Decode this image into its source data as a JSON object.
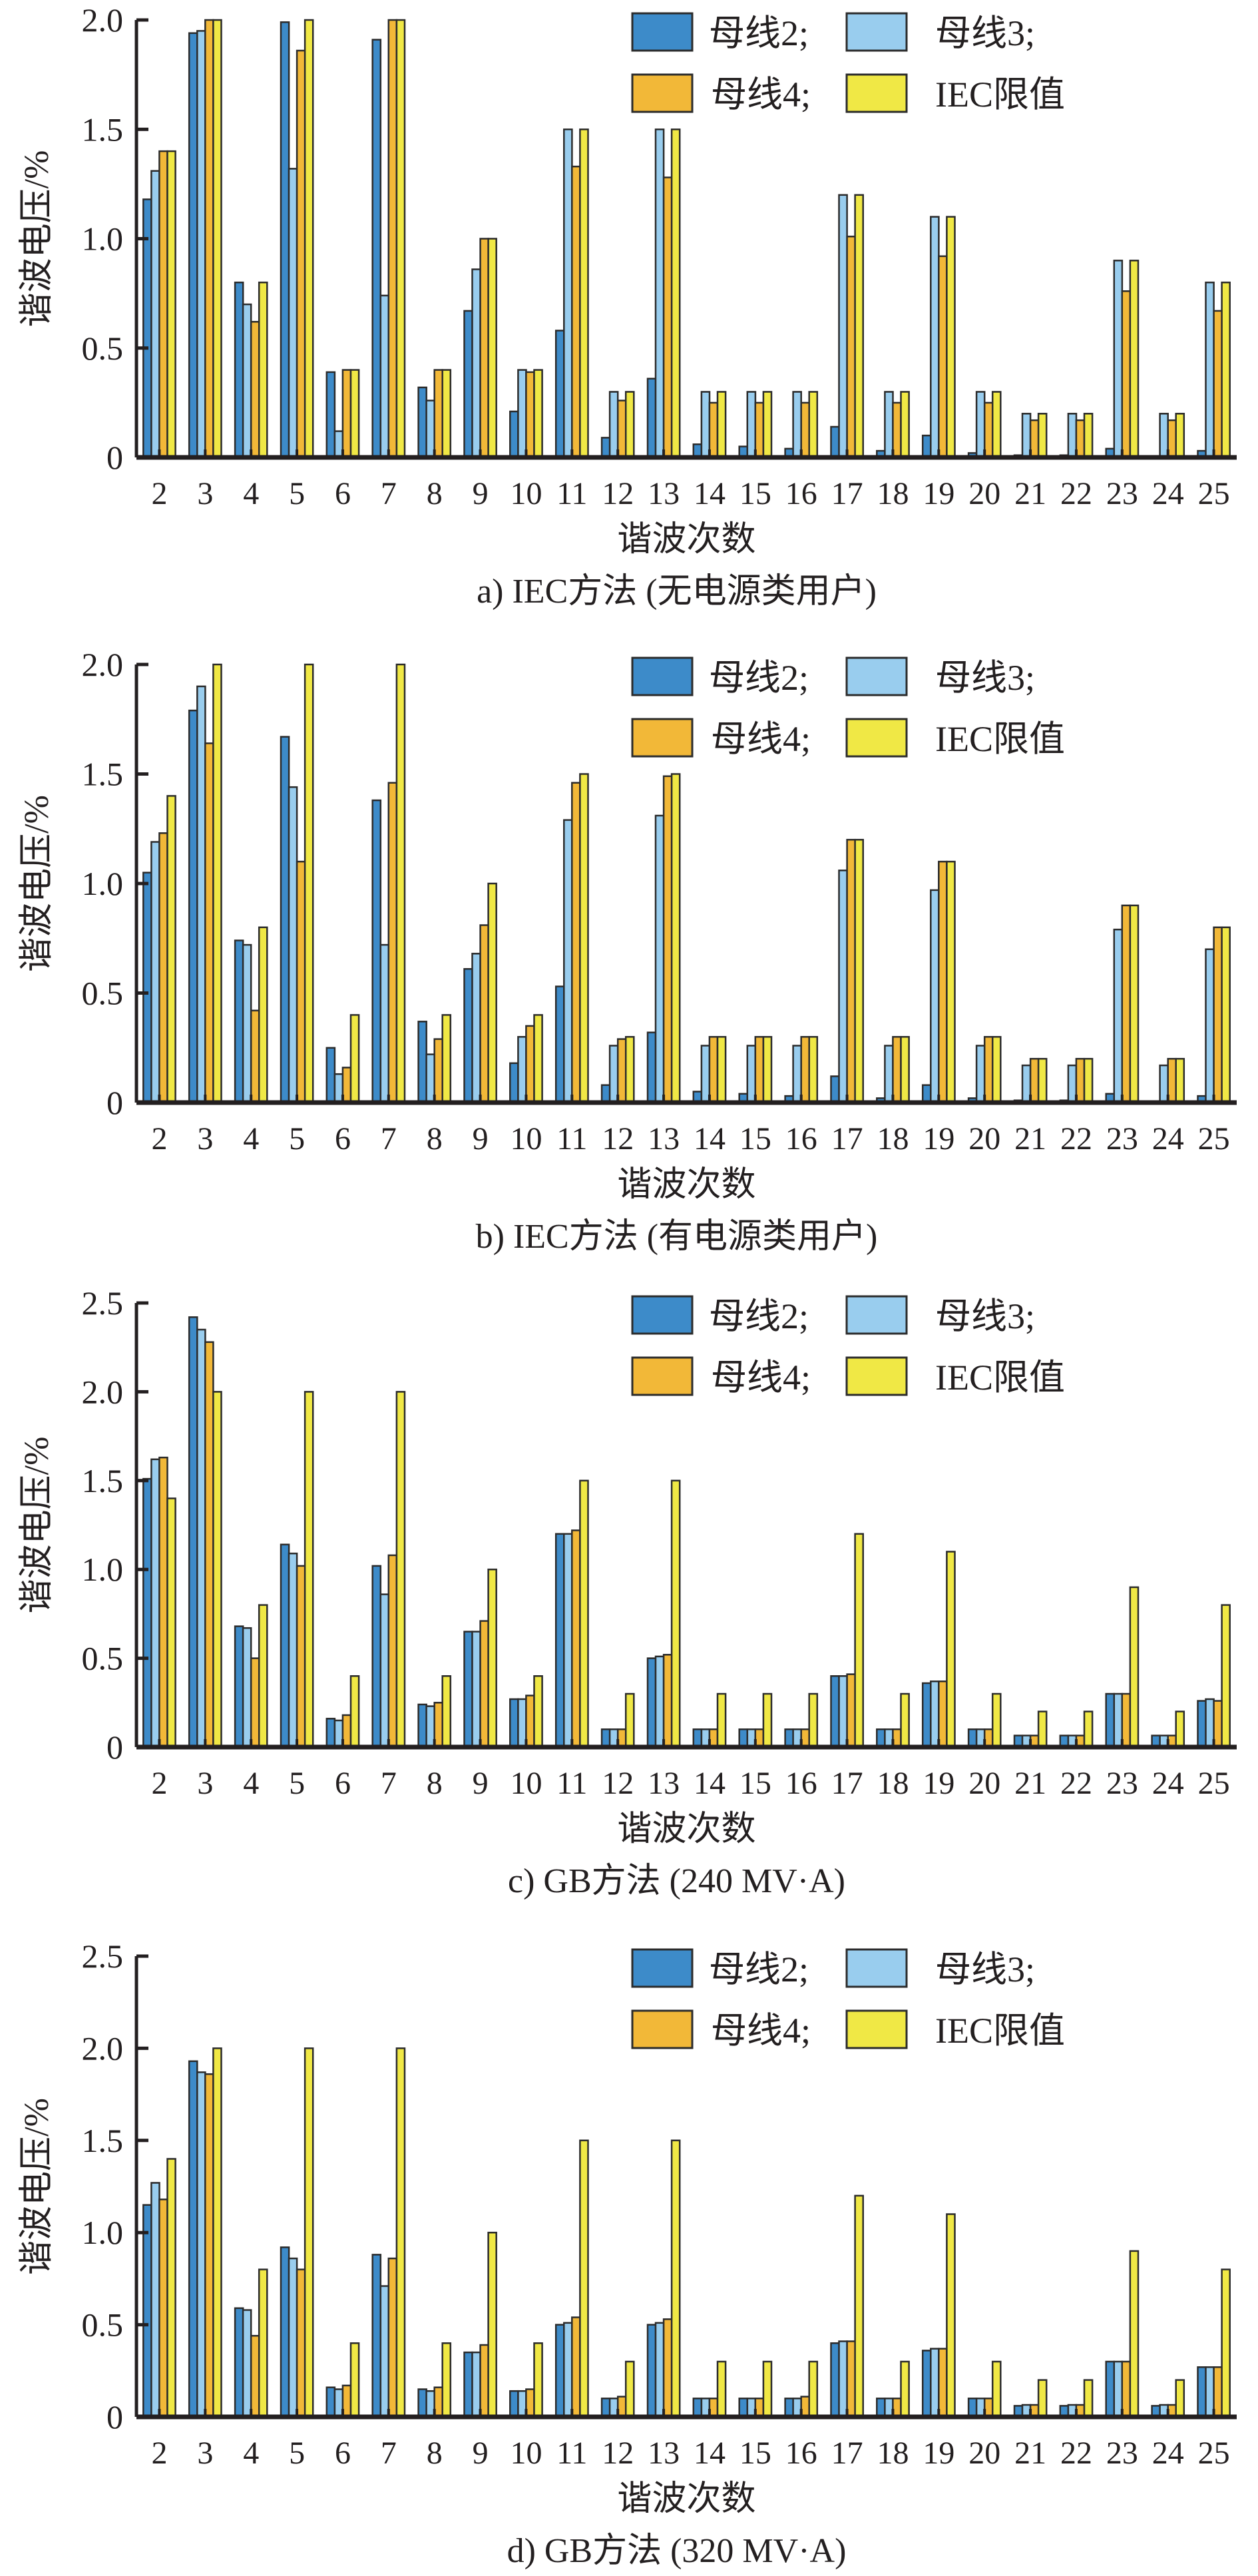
{
  "legend": {
    "items": [
      {
        "label": "母线2;",
        "color": "#3d8bc9"
      },
      {
        "label": "母线3;",
        "color": "#99cdee"
      },
      {
        "label": "母线4;",
        "color": "#f2b838"
      },
      {
        "label": "IEC限值",
        "color": "#f0e845"
      }
    ]
  },
  "chart_data": [
    {
      "type": "bar",
      "title": "a) IEC方法 (无电源类用户)",
      "xlabel": "谐波次数",
      "ylabel": "谐波电压/%",
      "ylim": [
        0,
        2.0
      ],
      "yticks": [
        0,
        0.5,
        1.0,
        1.5,
        2.0
      ],
      "ytick_labels": [
        "0",
        "0.5",
        "1.0",
        "1.5",
        "2.0"
      ],
      "legend_position": "top-right",
      "grid": false,
      "categories": [
        "2",
        "3",
        "4",
        "5",
        "6",
        "7",
        "8",
        "9",
        "10",
        "11",
        "12",
        "13",
        "14",
        "15",
        "16",
        "17",
        "18",
        "19",
        "20",
        "21",
        "22",
        "23",
        "24",
        "25"
      ],
      "series": [
        {
          "name": "母线2",
          "values": [
            1.18,
            1.94,
            0.8,
            1.99,
            0.39,
            1.91,
            0.32,
            0.67,
            0.21,
            0.58,
            0.09,
            0.36,
            0.06,
            0.05,
            0.04,
            0.14,
            0.03,
            0.1,
            0.02,
            0.01,
            0.01,
            0.04,
            0.005,
            0.03
          ]
        },
        {
          "name": "母线3",
          "values": [
            1.31,
            1.95,
            0.7,
            1.32,
            0.12,
            0.74,
            0.26,
            0.86,
            0.4,
            1.5,
            0.3,
            1.5,
            0.3,
            0.3,
            0.3,
            1.2,
            0.3,
            1.1,
            0.3,
            0.2,
            0.2,
            0.9,
            0.2,
            0.8
          ]
        },
        {
          "name": "母线4",
          "values": [
            1.4,
            2.0,
            0.62,
            1.86,
            0.4,
            2.0,
            0.4,
            1.0,
            0.39,
            1.33,
            0.26,
            1.28,
            0.25,
            0.25,
            0.25,
            1.01,
            0.25,
            0.92,
            0.25,
            0.17,
            0.17,
            0.76,
            0.17,
            0.67
          ]
        },
        {
          "name": "IEC限值",
          "values": [
            1.4,
            2.0,
            0.8,
            2.0,
            0.4,
            2.0,
            0.4,
            1.0,
            0.4,
            1.5,
            0.3,
            1.5,
            0.3,
            0.3,
            0.3,
            1.2,
            0.3,
            1.1,
            0.3,
            0.2,
            0.2,
            0.9,
            0.2,
            0.8
          ]
        }
      ]
    },
    {
      "type": "bar",
      "title": "b) IEC方法 (有电源类用户)",
      "xlabel": "谐波次数",
      "ylabel": "谐波电压/%",
      "ylim": [
        0,
        2.0
      ],
      "yticks": [
        0,
        0.5,
        1.0,
        1.5,
        2.0
      ],
      "ytick_labels": [
        "0",
        "0.5",
        "1.0",
        "1.5",
        "2.0"
      ],
      "legend_position": "top-right",
      "grid": false,
      "categories": [
        "2",
        "3",
        "4",
        "5",
        "6",
        "7",
        "8",
        "9",
        "10",
        "11",
        "12",
        "13",
        "14",
        "15",
        "16",
        "17",
        "18",
        "19",
        "20",
        "21",
        "22",
        "23",
        "24",
        "25"
      ],
      "series": [
        {
          "name": "母线2",
          "values": [
            1.05,
            1.79,
            0.74,
            1.67,
            0.25,
            1.38,
            0.37,
            0.61,
            0.18,
            0.53,
            0.08,
            0.32,
            0.05,
            0.04,
            0.03,
            0.12,
            0.02,
            0.08,
            0.02,
            0.01,
            0.01,
            0.04,
            0.005,
            0.03
          ]
        },
        {
          "name": "母线3",
          "values": [
            1.19,
            1.9,
            0.72,
            1.44,
            0.13,
            0.72,
            0.22,
            0.68,
            0.3,
            1.29,
            0.26,
            1.31,
            0.26,
            0.26,
            0.26,
            1.06,
            0.26,
            0.97,
            0.26,
            0.17,
            0.17,
            0.79,
            0.17,
            0.7
          ]
        },
        {
          "name": "母线4",
          "values": [
            1.23,
            1.64,
            0.42,
            1.1,
            0.16,
            1.46,
            0.29,
            0.81,
            0.35,
            1.46,
            0.29,
            1.49,
            0.3,
            0.3,
            0.3,
            1.2,
            0.3,
            1.1,
            0.3,
            0.2,
            0.2,
            0.9,
            0.2,
            0.8
          ]
        },
        {
          "name": "IEC限值",
          "values": [
            1.4,
            2.0,
            0.8,
            2.0,
            0.4,
            2.0,
            0.4,
            1.0,
            0.4,
            1.5,
            0.3,
            1.5,
            0.3,
            0.3,
            0.3,
            1.2,
            0.3,
            1.1,
            0.3,
            0.2,
            0.2,
            0.9,
            0.2,
            0.8
          ]
        }
      ]
    },
    {
      "type": "bar",
      "title": "c) GB方法 (240 MV·A)",
      "xlabel": "谐波次数",
      "ylabel": "谐波电压/%",
      "ylim": [
        0,
        2.5
      ],
      "yticks": [
        0,
        0.5,
        1.0,
        1.5,
        2.0,
        2.5
      ],
      "ytick_labels": [
        "0",
        "0.5",
        "1.0",
        "1.5",
        "2.0",
        "2.5"
      ],
      "legend_position": "top-right",
      "grid": false,
      "categories": [
        "2",
        "3",
        "4",
        "5",
        "6",
        "7",
        "8",
        "9",
        "10",
        "11",
        "12",
        "13",
        "14",
        "15",
        "16",
        "17",
        "18",
        "19",
        "20",
        "21",
        "22",
        "23",
        "24",
        "25"
      ],
      "series": [
        {
          "name": "母线2",
          "values": [
            1.51,
            2.42,
            0.68,
            1.14,
            0.16,
            1.02,
            0.24,
            0.65,
            0.27,
            1.2,
            0.1,
            0.5,
            0.1,
            0.1,
            0.1,
            0.4,
            0.1,
            0.36,
            0.1,
            0.065,
            0.065,
            0.3,
            0.065,
            0.26
          ]
        },
        {
          "name": "母线3",
          "values": [
            1.62,
            2.35,
            0.67,
            1.09,
            0.15,
            0.86,
            0.23,
            0.65,
            0.27,
            1.2,
            0.1,
            0.51,
            0.1,
            0.1,
            0.1,
            0.4,
            0.1,
            0.37,
            0.1,
            0.065,
            0.065,
            0.3,
            0.065,
            0.27
          ]
        },
        {
          "name": "母线4",
          "values": [
            1.63,
            2.28,
            0.5,
            1.02,
            0.18,
            1.08,
            0.25,
            0.71,
            0.29,
            1.22,
            0.1,
            0.52,
            0.1,
            0.1,
            0.1,
            0.41,
            0.1,
            0.37,
            0.1,
            0.065,
            0.065,
            0.3,
            0.065,
            0.26
          ]
        },
        {
          "name": "IEC限值",
          "values": [
            1.4,
            2.0,
            0.8,
            2.0,
            0.4,
            2.0,
            0.4,
            1.0,
            0.4,
            1.5,
            0.3,
            1.5,
            0.3,
            0.3,
            0.3,
            1.2,
            0.3,
            1.1,
            0.3,
            0.2,
            0.2,
            0.9,
            0.2,
            0.8
          ]
        }
      ]
    },
    {
      "type": "bar",
      "title": "d) GB方法 (320 MV·A)",
      "xlabel": "谐波次数",
      "ylabel": "谐波电压/%",
      "ylim": [
        0,
        2.5
      ],
      "yticks": [
        0,
        0.5,
        1.0,
        1.5,
        2.0,
        2.5
      ],
      "ytick_labels": [
        "0",
        "0.5",
        "1.0",
        "1.5",
        "2.0",
        "2.5"
      ],
      "legend_position": "top-right",
      "grid": false,
      "categories": [
        "2",
        "3",
        "4",
        "5",
        "6",
        "7",
        "8",
        "9",
        "10",
        "11",
        "12",
        "13",
        "14",
        "15",
        "16",
        "17",
        "18",
        "19",
        "20",
        "21",
        "22",
        "23",
        "24",
        "25"
      ],
      "series": [
        {
          "name": "母线2",
          "values": [
            1.15,
            1.93,
            0.59,
            0.92,
            0.16,
            0.88,
            0.15,
            0.35,
            0.14,
            0.5,
            0.1,
            0.5,
            0.1,
            0.1,
            0.1,
            0.4,
            0.1,
            0.36,
            0.1,
            0.06,
            0.06,
            0.3,
            0.06,
            0.27
          ]
        },
        {
          "name": "母线3",
          "values": [
            1.27,
            1.87,
            0.58,
            0.86,
            0.15,
            0.71,
            0.14,
            0.35,
            0.14,
            0.51,
            0.1,
            0.51,
            0.1,
            0.1,
            0.1,
            0.41,
            0.1,
            0.37,
            0.1,
            0.065,
            0.065,
            0.3,
            0.065,
            0.27
          ]
        },
        {
          "name": "母线4",
          "values": [
            1.18,
            1.86,
            0.44,
            0.8,
            0.17,
            0.86,
            0.16,
            0.39,
            0.15,
            0.54,
            0.11,
            0.53,
            0.1,
            0.1,
            0.11,
            0.41,
            0.1,
            0.37,
            0.1,
            0.065,
            0.065,
            0.3,
            0.065,
            0.27
          ]
        },
        {
          "name": "IEC限值",
          "values": [
            1.4,
            2.0,
            0.8,
            2.0,
            0.4,
            2.0,
            0.4,
            1.0,
            0.4,
            1.5,
            0.3,
            1.5,
            0.3,
            0.3,
            0.3,
            1.2,
            0.3,
            1.1,
            0.3,
            0.2,
            0.2,
            0.9,
            0.2,
            0.8
          ]
        }
      ]
    }
  ]
}
